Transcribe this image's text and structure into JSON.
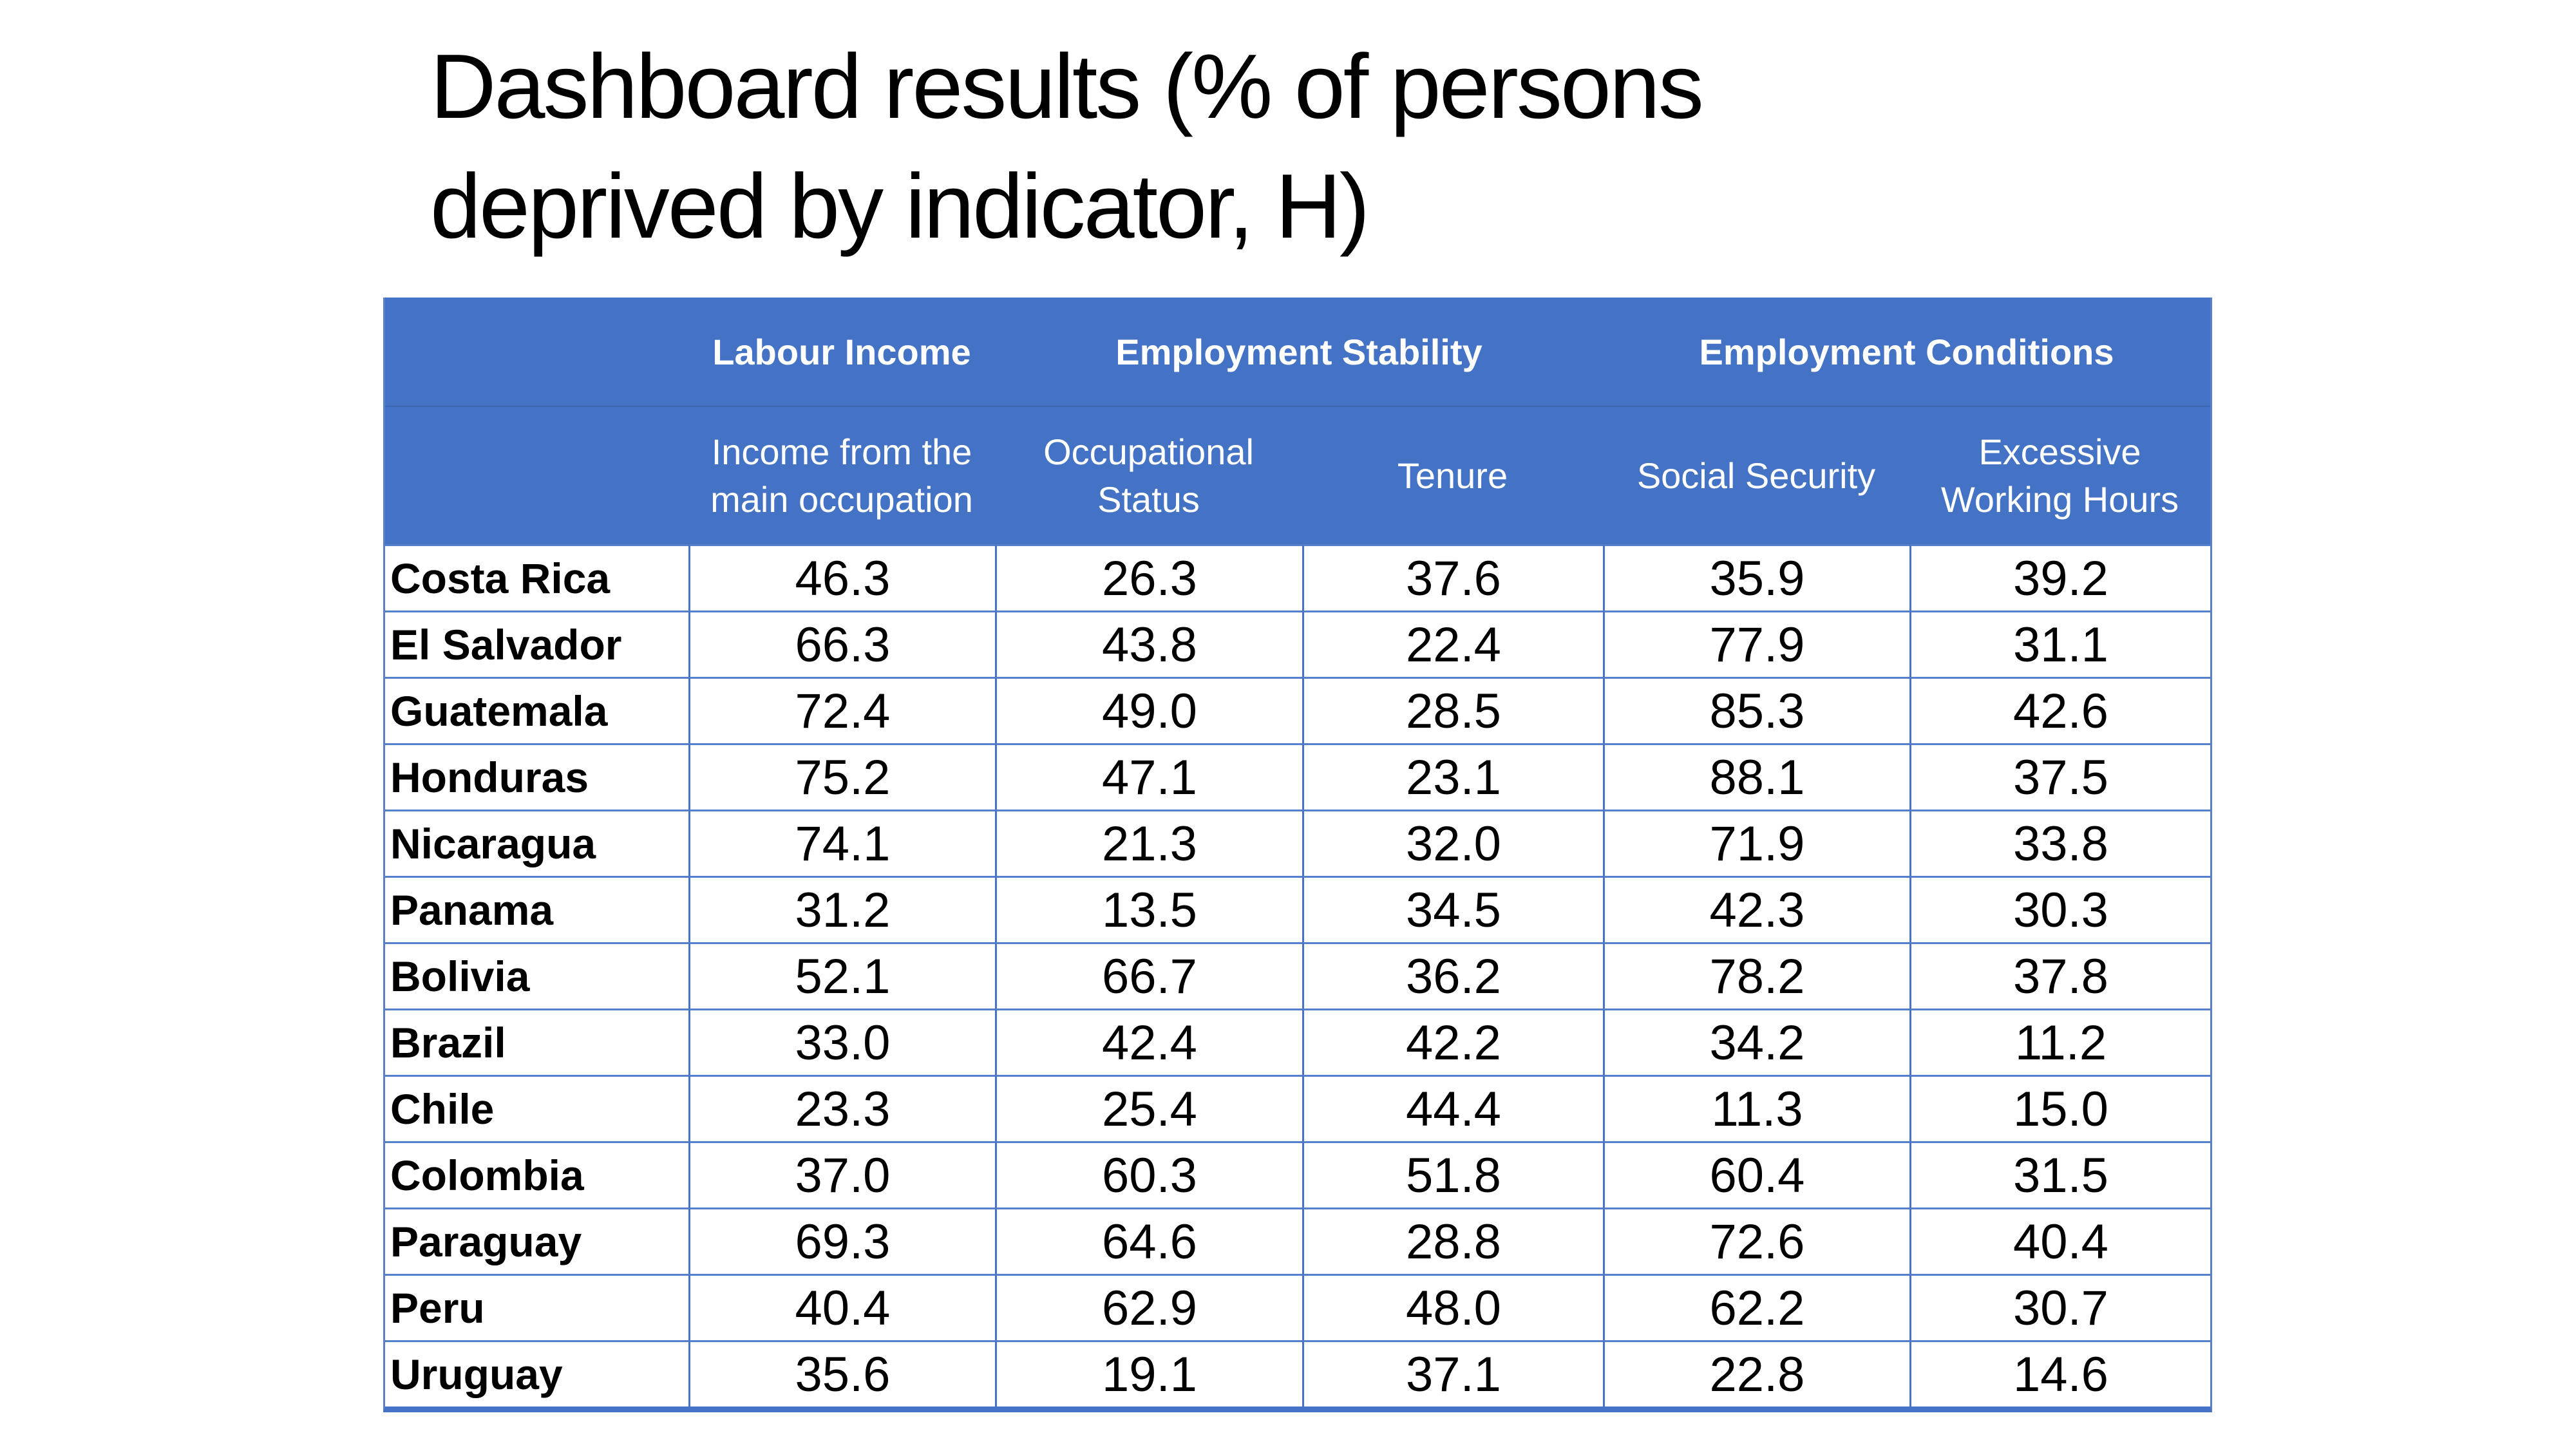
{
  "chart_data": {
    "type": "table",
    "title": "Dashboard results (% of persons deprived by indicator, H)",
    "column_groups": [
      {
        "label": "Labour Income",
        "columns": [
          "Income from the main occupation"
        ]
      },
      {
        "label": "Employment Stability",
        "columns": [
          "Occupational Status",
          "Tenure"
        ]
      },
      {
        "label": "Employment Conditions",
        "columns": [
          "Social Security",
          "Excessive Working Hours"
        ]
      }
    ],
    "columns": [
      "Income from the main occupation",
      "Occupational Status",
      "Tenure",
      "Social Security",
      "Excessive Working Hours"
    ],
    "rows": [
      "Costa Rica",
      "El Salvador",
      "Guatemala",
      "Honduras",
      "Nicaragua",
      "Panama",
      "Bolivia",
      "Brazil",
      "Chile",
      "Colombia",
      "Paraguay",
      "Peru",
      "Uruguay"
    ],
    "values": [
      [
        46.3,
        26.3,
        37.6,
        35.9,
        39.2
      ],
      [
        66.3,
        43.8,
        22.4,
        77.9,
        31.1
      ],
      [
        72.4,
        49.0,
        28.5,
        85.3,
        42.6
      ],
      [
        75.2,
        47.1,
        23.1,
        88.1,
        37.5
      ],
      [
        74.1,
        21.3,
        32.0,
        71.9,
        33.8
      ],
      [
        31.2,
        13.5,
        34.5,
        42.3,
        30.3
      ],
      [
        52.1,
        66.7,
        36.2,
        78.2,
        37.8
      ],
      [
        33.0,
        42.4,
        42.2,
        34.2,
        11.2
      ],
      [
        23.3,
        25.4,
        44.4,
        11.3,
        15.0
      ],
      [
        37.0,
        60.3,
        51.8,
        60.4,
        31.5
      ],
      [
        69.3,
        64.6,
        28.8,
        72.6,
        40.4
      ],
      [
        40.4,
        62.9,
        48.0,
        62.2,
        30.7
      ],
      [
        35.6,
        19.1,
        37.1,
        22.8,
        14.6
      ]
    ]
  },
  "title": {
    "line1": "Dashboard results (% of persons",
    "line2": "deprived by indicator, H)"
  },
  "table": {
    "group_headers": [
      "Labour Income",
      "Employment Stability",
      "Employment Conditions"
    ],
    "column_headers": [
      "Income from the main occupation",
      "Occupational Status",
      "Tenure",
      "Social Security",
      "Excessive Working Hours"
    ],
    "rows": [
      {
        "country": "Costa Rica",
        "values": [
          "46.3",
          "26.3",
          "37.6",
          "35.9",
          "39.2"
        ]
      },
      {
        "country": "El Salvador",
        "values": [
          "66.3",
          "43.8",
          "22.4",
          "77.9",
          "31.1"
        ]
      },
      {
        "country": "Guatemala",
        "values": [
          "72.4",
          "49.0",
          "28.5",
          "85.3",
          "42.6"
        ]
      },
      {
        "country": "Honduras",
        "values": [
          "75.2",
          "47.1",
          "23.1",
          "88.1",
          "37.5"
        ]
      },
      {
        "country": "Nicaragua",
        "values": [
          "74.1",
          "21.3",
          "32.0",
          "71.9",
          "33.8"
        ]
      },
      {
        "country": "Panama",
        "values": [
          "31.2",
          "13.5",
          "34.5",
          "42.3",
          "30.3"
        ]
      },
      {
        "country": "Bolivia",
        "values": [
          "52.1",
          "66.7",
          "36.2",
          "78.2",
          "37.8"
        ]
      },
      {
        "country": "Brazil",
        "values": [
          "33.0",
          "42.4",
          "42.2",
          "34.2",
          "11.2"
        ]
      },
      {
        "country": "Chile",
        "values": [
          "23.3",
          "25.4",
          "44.4",
          "11.3",
          "15.0"
        ]
      },
      {
        "country": "Colombia",
        "values": [
          "37.0",
          "60.3",
          "51.8",
          "60.4",
          "31.5"
        ]
      },
      {
        "country": "Paraguay",
        "values": [
          "69.3",
          "64.6",
          "28.8",
          "72.6",
          "40.4"
        ]
      },
      {
        "country": "Peru",
        "values": [
          "40.4",
          "62.9",
          "48.0",
          "62.2",
          "30.7"
        ]
      },
      {
        "country": "Uruguay",
        "values": [
          "35.6",
          "19.1",
          "37.1",
          "22.8",
          "14.6"
        ]
      }
    ],
    "colors": {
      "header_bg": "#4472C4",
      "vertical_border": "#4673C5",
      "horizontal_border": "#567FCB",
      "bottom_border": "#4472C4",
      "header_text": "#FFFFFF",
      "body_text": "#000000"
    }
  }
}
